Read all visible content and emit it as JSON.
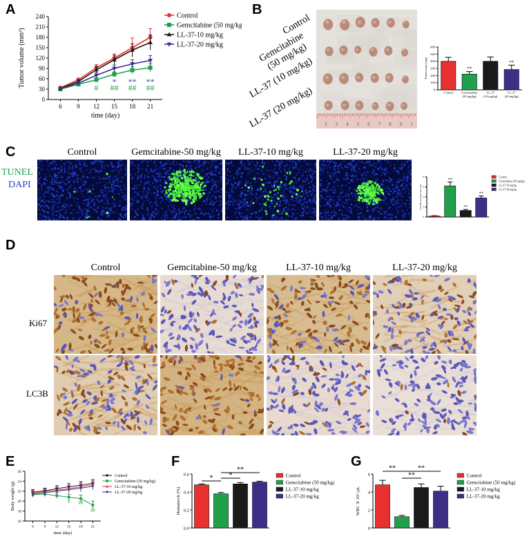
{
  "colors": {
    "control": "#e8302f",
    "gem": "#1fa04a",
    "ll10": "#1a1a1a",
    "ll20": "#3f2e88",
    "purple_mark": "#4b3a9c",
    "green_mark": "#22a04c"
  },
  "panelA": {
    "letter": "A",
    "chart_data": {
      "type": "line",
      "xlabel": "time (day)",
      "ylabel": "Tumor volume (mm³)",
      "x": [
        6,
        9,
        12,
        15,
        18,
        21
      ],
      "xlim": [
        4,
        23
      ],
      "ylim": [
        0,
        240
      ],
      "yticks": [
        0,
        30,
        60,
        90,
        120,
        150,
        180,
        210,
        240
      ],
      "series": [
        {
          "name": "Control",
          "color": "#e8302f",
          "marker": "circle",
          "values": [
            34,
            57,
            92,
            120,
            150,
            180
          ],
          "err": [
            3,
            5,
            9,
            12,
            28,
            25
          ]
        },
        {
          "name": "Gemcitabine (50 mg/kg)",
          "color": "#1fa04a",
          "marker": "square",
          "values": [
            30,
            44,
            57,
            73,
            85,
            92
          ],
          "err": [
            3,
            4,
            6,
            7,
            10,
            12
          ]
        },
        {
          "name": "LL-37-10 mg/kg",
          "color": "#1a1a1a",
          "marker": "triangle",
          "values": [
            32,
            52,
            86,
            115,
            143,
            165
          ],
          "err": [
            3,
            5,
            10,
            13,
            18,
            22
          ]
        },
        {
          "name": "LL-37-20 mg/kg",
          "color": "#3f2e88",
          "marker": "triangle-down",
          "values": [
            31,
            47,
            70,
            90,
            103,
            113
          ],
          "err": [
            3,
            4,
            8,
            10,
            12,
            14
          ]
        }
      ],
      "annotations": [
        {
          "x": 12,
          "text": "#",
          "color": "#22a04c",
          "y": 26
        },
        {
          "x": 15,
          "text": "*",
          "color": "#4b3a9c",
          "y": 44
        },
        {
          "x": 15,
          "text": "##",
          "color": "#22a04c",
          "y": 26
        },
        {
          "x": 18,
          "text": "**",
          "color": "#4b3a9c",
          "y": 44
        },
        {
          "x": 18,
          "text": "##",
          "color": "#22a04c",
          "y": 26
        },
        {
          "x": 21,
          "text": "**",
          "color": "#4b3a9c",
          "y": 44
        },
        {
          "x": 21,
          "text": "##",
          "color": "#22a04c",
          "y": 26
        }
      ]
    }
  },
  "panelB": {
    "letter": "B",
    "row_labels": [
      "Control",
      "Gemcitabine\n(50 mg/kg)",
      "LL-37 (10 mg/kg)",
      "LL-37 (20 mg/kg)"
    ],
    "ruler_ticks": [
      "2",
      "3",
      "4",
      "5",
      "6",
      "7",
      "8",
      "9",
      "1"
    ],
    "chart_data": {
      "type": "bar",
      "ylabel": "Tumor mass (mg)",
      "categories": [
        "Control",
        "Gemcitabine\n(50 mg/kg)",
        "LL-37\n(10 mg/kg)",
        "LL-37\n(20 mg/kg)"
      ],
      "values": [
        400,
        220,
        400,
        285
      ],
      "err": [
        55,
        35,
        60,
        60
      ],
      "colors": [
        "#e8302f",
        "#1fa04a",
        "#1a1a1a",
        "#3f2e88"
      ],
      "ylim": [
        0,
        600
      ],
      "yticks": [
        0,
        100,
        200,
        300,
        400,
        500,
        600
      ],
      "sig": [
        "",
        "**",
        "",
        "**"
      ]
    }
  },
  "panelC": {
    "letter": "C",
    "stain1": "TUNEL",
    "stain2": "DAPI",
    "columns": [
      "Control",
      "Gemcitabine-50 mg/kg",
      "LL-37-10 mg/kg",
      "LL-37-20 mg/kg"
    ],
    "chart_data": {
      "type": "bar",
      "ylabel": "TUNEL positive ratio (%)",
      "categories": [
        "Control",
        "Gemcitabine (50 mg/kg)",
        "LL-37-10 mg/kg",
        "LL-37-20 mg/kg"
      ],
      "values": [
        0.2,
        6.2,
        1.3,
        3.8
      ],
      "err": [
        0.05,
        0.8,
        0.2,
        0.4
      ],
      "colors": [
        "#e8302f",
        "#1fa04a",
        "#1a1a1a",
        "#3f2e88"
      ],
      "ylim": [
        0,
        8
      ],
      "yticks": [
        0,
        2,
        4,
        6,
        8
      ],
      "sig": [
        "",
        "**",
        "**",
        "**"
      ],
      "legend": [
        "Control",
        "Gemcitabine (50 mg/kg)",
        "LL-37-10 mg/kg",
        "LL-37-20 mg/kg"
      ]
    }
  },
  "panelD": {
    "letter": "D",
    "columns": [
      "Control",
      "Gemcitabine-50 mg/kg",
      "LL-37-10 mg/kg",
      "LL-37-20 mg/kg"
    ],
    "rows": [
      "Ki67",
      "LC3B"
    ]
  },
  "panelE": {
    "letter": "E",
    "chart_data": {
      "type": "line",
      "xlabel": "time (day)",
      "ylabel": "Body weight (g)",
      "x": [
        6,
        9,
        12,
        15,
        18,
        21
      ],
      "xlim": [
        4,
        23
      ],
      "ylim": [
        16,
        26
      ],
      "yticks": [
        16,
        18,
        20,
        22,
        24,
        26
      ],
      "series": [
        {
          "name": "Control",
          "color": "#1a1a1a",
          "marker": "circle",
          "values": [
            21.8,
            22.1,
            22.5,
            22.9,
            23.2,
            23.6
          ],
          "err": [
            0.5,
            0.5,
            0.6,
            0.6,
            0.7,
            0.7
          ]
        },
        {
          "name": "Gemcitabine (50 mg/kg)",
          "color": "#1fa04a",
          "marker": "square",
          "values": [
            21.3,
            21.4,
            21.1,
            20.8,
            20.5,
            19.2
          ],
          "err": [
            0.5,
            0.5,
            0.6,
            0.6,
            0.7,
            0.8
          ]
        },
        {
          "name": "LL-37-10 mg/kg",
          "color": "#e8302f",
          "marker": "triangle",
          "values": [
            21.6,
            21.9,
            22.2,
            22.5,
            22.9,
            23.3
          ],
          "err": [
            0.5,
            0.5,
            0.6,
            0.6,
            0.7,
            0.7
          ]
        },
        {
          "name": "LL-37-20 mg/kg",
          "color": "#3f2e88",
          "marker": "triangle-down",
          "values": [
            21.4,
            21.7,
            22.0,
            22.3,
            22.6,
            23.0
          ],
          "err": [
            0.5,
            0.5,
            0.6,
            0.6,
            0.7,
            0.7
          ]
        }
      ],
      "annotations": [
        {
          "x": 15,
          "text": "#",
          "color": "#22a04c",
          "y": 19.6
        },
        {
          "x": 18,
          "text": "##",
          "color": "#22a04c",
          "y": 19.3
        },
        {
          "x": 21,
          "text": "##",
          "color": "#22a04c",
          "y": 17.8
        }
      ]
    }
  },
  "panelF": {
    "letter": "F",
    "chart_data": {
      "type": "bar",
      "ylabel": "Hematocrit (%)",
      "categories": [
        "Control",
        "Gemcitabine (50 mg/kg)",
        "LL-37-10 mg/kg",
        "LL-37-20 mg/kg"
      ],
      "values": [
        0.48,
        0.38,
        0.49,
        0.51
      ],
      "err": [
        0.01,
        0.015,
        0.015,
        0.01
      ],
      "colors": [
        "#e8302f",
        "#1fa04a",
        "#1a1a1a",
        "#3f2e88"
      ],
      "ylim": [
        0,
        0.6
      ],
      "yticks": [
        0.0,
        0.2,
        0.4,
        0.6
      ],
      "brackets": [
        {
          "from": 0,
          "to": 1,
          "label": "*"
        },
        {
          "from": 1,
          "to": 2,
          "label": "*"
        },
        {
          "from": 1,
          "to": 3,
          "label": "**"
        }
      ],
      "legend": [
        "Control",
        "Gemcitabine (50 mg/kg)",
        "LL-37-10 mg/kg",
        "LL-37-20 mg/kg"
      ]
    }
  },
  "panelG": {
    "letter": "G",
    "chart_data": {
      "type": "bar",
      "ylabel": "WBC X 10³ /μL",
      "categories": [
        "Control",
        "Gemcitabine (50 mg/kg)",
        "LL-37-10 mg/kg",
        "LL-37-20 mg/kg"
      ],
      "values": [
        4.8,
        1.25,
        4.5,
        4.1
      ],
      "err": [
        0.5,
        0.15,
        0.4,
        0.55
      ],
      "colors": [
        "#e8302f",
        "#1fa04a",
        "#1a1a1a",
        "#3f2e88"
      ],
      "ylim": [
        0,
        6
      ],
      "yticks": [
        0,
        2,
        4,
        6
      ],
      "brackets": [
        {
          "from": 0,
          "to": 1,
          "label": "**"
        },
        {
          "from": 1,
          "to": 2,
          "label": "**"
        },
        {
          "from": 1,
          "to": 3,
          "label": "**"
        }
      ],
      "legend": [
        "Control",
        "Gemcitabine (50 mg/kg)",
        "LL-37-10 mg/kg",
        "LL-37-20 mg/kg"
      ]
    }
  }
}
